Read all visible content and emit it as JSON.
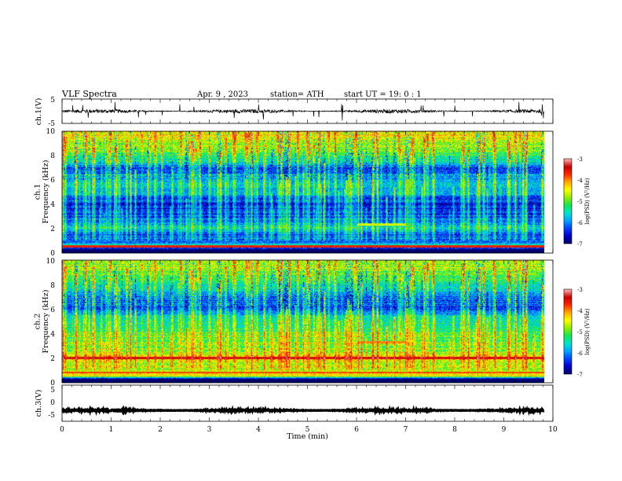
{
  "header": {
    "title": "VLF  Spectra",
    "date": "Apr. 9  , 2023",
    "station": "station= ATH",
    "start": "start  UT  =   19: 0   : 1"
  },
  "colors": {
    "trace": "#000000",
    "scale": [
      "#00006e",
      "#0000d0",
      "#0046ff",
      "#00aaff",
      "#00e6c8",
      "#14e650",
      "#96ee00",
      "#ffff00",
      "#ffaa00",
      "#ff2800",
      "#c80000",
      "#ffb4b4"
    ]
  },
  "chart_data": [
    {
      "type": "line",
      "panel": "ch1-waveform",
      "ylabel": "ch.1(V)",
      "ylim": [
        -5,
        5
      ],
      "yticks": [
        "5",
        "-5"
      ],
      "xlim": [
        0,
        10
      ],
      "baseline": 0.0,
      "noise_amplitude": 0.8
    },
    {
      "type": "heatmap",
      "panel": "ch1-spectrogram",
      "ylabel": "ch.1\nFrequency (kHz)",
      "ylim": [
        0,
        10
      ],
      "yticks": [
        "0",
        "2",
        "4",
        "6",
        "8",
        "10"
      ],
      "xlim": [
        0,
        10
      ],
      "colorbar": {
        "label": "log(PSD) (V²/Hz)",
        "range": [
          -7,
          -3
        ],
        "ticks": [
          "-3",
          "-4",
          "-5",
          "-6",
          "-7"
        ]
      },
      "profile": [
        {
          "f": 0.3,
          "v": -6.9
        },
        {
          "f": 0.5,
          "v": -5.2
        },
        {
          "f": 0.7,
          "v": -5.8
        },
        {
          "f": 1.0,
          "v": -6.2
        },
        {
          "f": 1.5,
          "v": -6.4
        },
        {
          "f": 2.0,
          "v": -5.6
        },
        {
          "f": 2.5,
          "v": -6.3
        },
        {
          "f": 3.0,
          "v": -6.4
        },
        {
          "f": 4.0,
          "v": -6.6
        },
        {
          "f": 5.0,
          "v": -5.9
        },
        {
          "f": 6.0,
          "v": -5.8
        },
        {
          "f": 7.0,
          "v": -6.3
        },
        {
          "f": 7.5,
          "v": -5.6
        },
        {
          "f": 8.5,
          "v": -4.9
        },
        {
          "f": 9.5,
          "v": -4.5
        },
        {
          "f": 10.0,
          "v": -4.4
        }
      ],
      "tones": [
        {
          "f": 0.5,
          "v": -3.6,
          "from": 0,
          "to": 9.8
        },
        {
          "f": 2.3,
          "v": -4.6,
          "from": 6.0,
          "to": 7.0
        }
      ]
    },
    {
      "type": "heatmap",
      "panel": "ch2-spectrogram",
      "ylabel": "ch.2\nFrequency (kHz)",
      "ylim": [
        0,
        10
      ],
      "yticks": [
        "0",
        "2",
        "4",
        "6",
        "8",
        "10"
      ],
      "xlim": [
        0,
        10
      ],
      "colorbar": {
        "label": "log(PSD) (V²/Hz)",
        "range": [
          -7,
          -3
        ],
        "ticks": [
          "-3",
          "-4",
          "-5",
          "-6",
          "-7"
        ]
      },
      "profile": [
        {
          "f": 0.3,
          "v": -6.9
        },
        {
          "f": 0.5,
          "v": -4.2
        },
        {
          "f": 1.0,
          "v": -4.8
        },
        {
          "f": 1.5,
          "v": -4.9
        },
        {
          "f": 2.0,
          "v": -4.3
        },
        {
          "f": 2.5,
          "v": -4.9
        },
        {
          "f": 3.0,
          "v": -5.0
        },
        {
          "f": 4.0,
          "v": -5.2
        },
        {
          "f": 5.0,
          "v": -5.4
        },
        {
          "f": 6.0,
          "v": -6.3
        },
        {
          "f": 7.0,
          "v": -6.2
        },
        {
          "f": 7.5,
          "v": -5.7
        },
        {
          "f": 8.5,
          "v": -5.1
        },
        {
          "f": 9.5,
          "v": -4.7
        },
        {
          "f": 10.0,
          "v": -4.6
        }
      ],
      "tones": [
        {
          "f": 2.0,
          "v": -3.4,
          "from": 0,
          "to": 9.8
        },
        {
          "f": 0.8,
          "v": -3.8,
          "from": 0,
          "to": 9.8
        },
        {
          "f": 3.3,
          "v": -4.0,
          "from": 6.0,
          "to": 7.0
        }
      ]
    },
    {
      "type": "line",
      "panel": "ch3-waveform",
      "ylabel": "ch.3(V)",
      "ylim": [
        -5,
        5
      ],
      "yticks": [
        "5",
        "0",
        "-5"
      ],
      "xlim": [
        0,
        10
      ],
      "xlabel": "Time  (min)",
      "xticks": [
        "0",
        "1",
        "2",
        "3",
        "4",
        "5",
        "6",
        "7",
        "8",
        "9",
        "10"
      ],
      "baseline": -2.0,
      "noise_amplitude": 0.25
    }
  ]
}
